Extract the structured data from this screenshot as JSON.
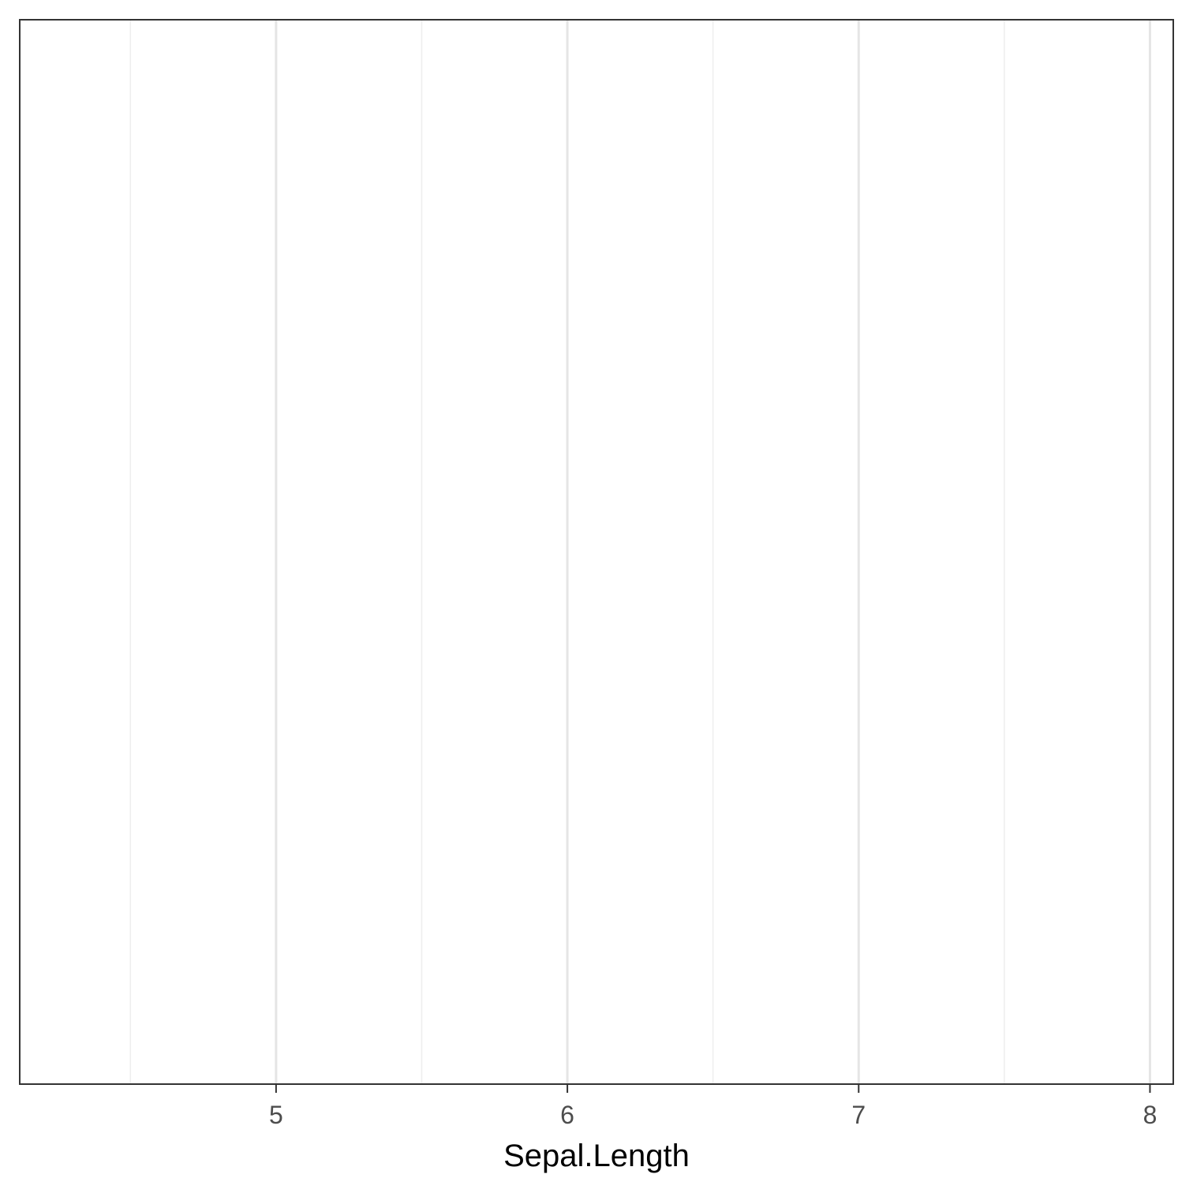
{
  "chart_data": {
    "type": "scatter",
    "title": "",
    "xlabel": "Sepal.Length",
    "ylabel": "",
    "xlim": [
      4.12,
      8.08
    ],
    "x_ticks": [
      5,
      6,
      7,
      8
    ],
    "x_tick_labels": [
      "5",
      "6",
      "7",
      "8"
    ],
    "x_minor_ticks": [
      4.5,
      5.5,
      6.5,
      7.5
    ],
    "y_ticks": [],
    "series": [],
    "grid": true,
    "legend": "none"
  }
}
